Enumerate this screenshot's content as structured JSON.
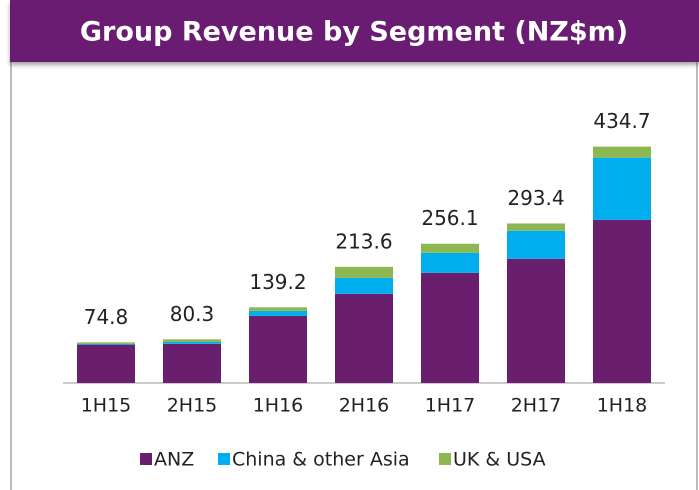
{
  "chart_data": {
    "type": "bar",
    "stacked": true,
    "title": "Group Revenue by Segment (NZ$m)",
    "categories": [
      "1H15",
      "2H15",
      "1H16",
      "2H16",
      "1H17",
      "2H17",
      "1H18"
    ],
    "series": [
      {
        "name": "ANZ",
        "color": "#6a1f6e",
        "values": [
          70.5,
          72.0,
          123.4,
          163.9,
          202.6,
          228.4,
          300.2
        ]
      },
      {
        "name": "China & other Asia",
        "color": "#00aeef",
        "values": [
          1.5,
          3.5,
          9.2,
          29.5,
          36.8,
          51.6,
          114.2
        ]
      },
      {
        "name": "UK & USA",
        "color": "#8db750",
        "values": [
          2.8,
          4.8,
          6.6,
          20.2,
          16.7,
          13.4,
          20.3
        ]
      }
    ],
    "totals": [
      74.8,
      80.3,
      139.2,
      213.6,
      256.1,
      293.4,
      434.7
    ],
    "ylim": [
      0,
      480
    ],
    "legend": "bottom"
  }
}
